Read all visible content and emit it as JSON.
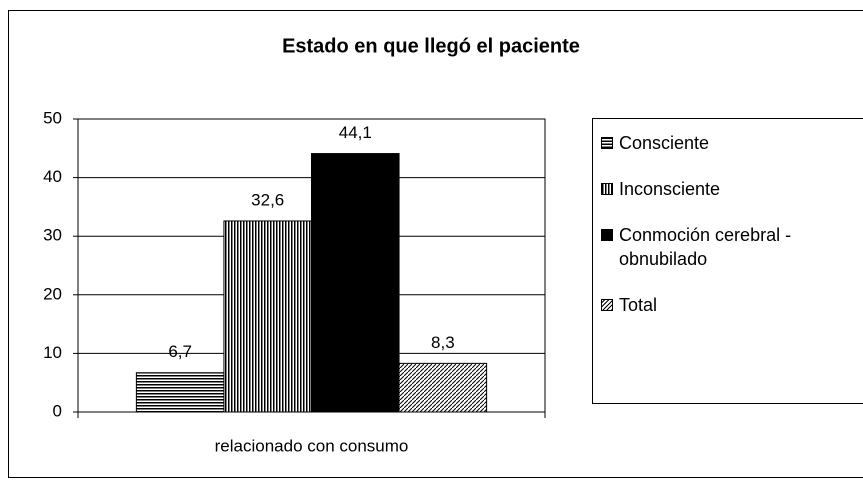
{
  "chart_data": {
    "type": "bar",
    "title": "Estado en que llegó el paciente",
    "categories": [
      "relacionado con consumo"
    ],
    "series": [
      {
        "name": "Consciente",
        "color": "#000000",
        "pattern": "horizontal",
        "values": [
          6.7
        ],
        "value_labels": [
          "6,7"
        ]
      },
      {
        "name": "Inconsciente",
        "color": "#000000",
        "pattern": "vertical",
        "values": [
          32.6
        ],
        "value_labels": [
          "32,6"
        ]
      },
      {
        "name": "Conmoción cerebral - obnubilado",
        "color": "#000000",
        "pattern": "solid",
        "values": [
          44.1
        ],
        "value_labels": [
          "44,1"
        ]
      },
      {
        "name": "Total",
        "color": "#000000",
        "pattern": "diagonal",
        "values": [
          8.3
        ],
        "value_labels": [
          "8,3"
        ]
      }
    ],
    "ylim": [
      0,
      50
    ],
    "yticks": [
      0,
      10,
      20,
      30,
      40,
      50
    ],
    "grid": true,
    "legend": "right"
  }
}
